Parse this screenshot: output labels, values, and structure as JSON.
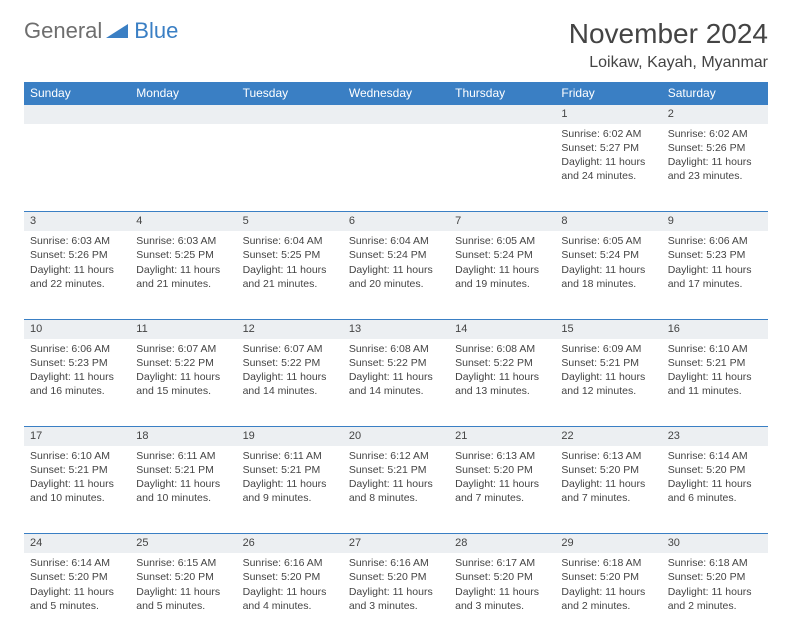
{
  "logo": {
    "general": "General",
    "blue": "Blue"
  },
  "title": "November 2024",
  "location": "Loikaw, Kayah, Myanmar",
  "colors": {
    "header_bg": "#3a7fc4",
    "header_text": "#ffffff",
    "daynum_bg": "#eceff2",
    "border": "#3a7fc4",
    "text": "#444444",
    "logo_gray": "#6e6e6e",
    "logo_blue": "#3a7fc4",
    "background": "#ffffff"
  },
  "typography": {
    "title_fontsize": 28,
    "location_fontsize": 16,
    "header_fontsize": 12,
    "daynum_fontsize": 11,
    "cell_fontsize": 10.5
  },
  "weekdays": [
    "Sunday",
    "Monday",
    "Tuesday",
    "Wednesday",
    "Thursday",
    "Friday",
    "Saturday"
  ],
  "weeks": [
    {
      "nums": [
        "",
        "",
        "",
        "",
        "",
        "1",
        "2"
      ],
      "cells": [
        [],
        [],
        [],
        [],
        [],
        [
          "Sunrise: 6:02 AM",
          "Sunset: 5:27 PM",
          "Daylight: 11 hours",
          "and 24 minutes."
        ],
        [
          "Sunrise: 6:02 AM",
          "Sunset: 5:26 PM",
          "Daylight: 11 hours",
          "and 23 minutes."
        ]
      ]
    },
    {
      "nums": [
        "3",
        "4",
        "5",
        "6",
        "7",
        "8",
        "9"
      ],
      "cells": [
        [
          "Sunrise: 6:03 AM",
          "Sunset: 5:26 PM",
          "Daylight: 11 hours",
          "and 22 minutes."
        ],
        [
          "Sunrise: 6:03 AM",
          "Sunset: 5:25 PM",
          "Daylight: 11 hours",
          "and 21 minutes."
        ],
        [
          "Sunrise: 6:04 AM",
          "Sunset: 5:25 PM",
          "Daylight: 11 hours",
          "and 21 minutes."
        ],
        [
          "Sunrise: 6:04 AM",
          "Sunset: 5:24 PM",
          "Daylight: 11 hours",
          "and 20 minutes."
        ],
        [
          "Sunrise: 6:05 AM",
          "Sunset: 5:24 PM",
          "Daylight: 11 hours",
          "and 19 minutes."
        ],
        [
          "Sunrise: 6:05 AM",
          "Sunset: 5:24 PM",
          "Daylight: 11 hours",
          "and 18 minutes."
        ],
        [
          "Sunrise: 6:06 AM",
          "Sunset: 5:23 PM",
          "Daylight: 11 hours",
          "and 17 minutes."
        ]
      ]
    },
    {
      "nums": [
        "10",
        "11",
        "12",
        "13",
        "14",
        "15",
        "16"
      ],
      "cells": [
        [
          "Sunrise: 6:06 AM",
          "Sunset: 5:23 PM",
          "Daylight: 11 hours",
          "and 16 minutes."
        ],
        [
          "Sunrise: 6:07 AM",
          "Sunset: 5:22 PM",
          "Daylight: 11 hours",
          "and 15 minutes."
        ],
        [
          "Sunrise: 6:07 AM",
          "Sunset: 5:22 PM",
          "Daylight: 11 hours",
          "and 14 minutes."
        ],
        [
          "Sunrise: 6:08 AM",
          "Sunset: 5:22 PM",
          "Daylight: 11 hours",
          "and 14 minutes."
        ],
        [
          "Sunrise: 6:08 AM",
          "Sunset: 5:22 PM",
          "Daylight: 11 hours",
          "and 13 minutes."
        ],
        [
          "Sunrise: 6:09 AM",
          "Sunset: 5:21 PM",
          "Daylight: 11 hours",
          "and 12 minutes."
        ],
        [
          "Sunrise: 6:10 AM",
          "Sunset: 5:21 PM",
          "Daylight: 11 hours",
          "and 11 minutes."
        ]
      ]
    },
    {
      "nums": [
        "17",
        "18",
        "19",
        "20",
        "21",
        "22",
        "23"
      ],
      "cells": [
        [
          "Sunrise: 6:10 AM",
          "Sunset: 5:21 PM",
          "Daylight: 11 hours",
          "and 10 minutes."
        ],
        [
          "Sunrise: 6:11 AM",
          "Sunset: 5:21 PM",
          "Daylight: 11 hours",
          "and 10 minutes."
        ],
        [
          "Sunrise: 6:11 AM",
          "Sunset: 5:21 PM",
          "Daylight: 11 hours",
          "and 9 minutes."
        ],
        [
          "Sunrise: 6:12 AM",
          "Sunset: 5:21 PM",
          "Daylight: 11 hours",
          "and 8 minutes."
        ],
        [
          "Sunrise: 6:13 AM",
          "Sunset: 5:20 PM",
          "Daylight: 11 hours",
          "and 7 minutes."
        ],
        [
          "Sunrise: 6:13 AM",
          "Sunset: 5:20 PM",
          "Daylight: 11 hours",
          "and 7 minutes."
        ],
        [
          "Sunrise: 6:14 AM",
          "Sunset: 5:20 PM",
          "Daylight: 11 hours",
          "and 6 minutes."
        ]
      ]
    },
    {
      "nums": [
        "24",
        "25",
        "26",
        "27",
        "28",
        "29",
        "30"
      ],
      "cells": [
        [
          "Sunrise: 6:14 AM",
          "Sunset: 5:20 PM",
          "Daylight: 11 hours",
          "and 5 minutes."
        ],
        [
          "Sunrise: 6:15 AM",
          "Sunset: 5:20 PM",
          "Daylight: 11 hours",
          "and 5 minutes."
        ],
        [
          "Sunrise: 6:16 AM",
          "Sunset: 5:20 PM",
          "Daylight: 11 hours",
          "and 4 minutes."
        ],
        [
          "Sunrise: 6:16 AM",
          "Sunset: 5:20 PM",
          "Daylight: 11 hours",
          "and 3 minutes."
        ],
        [
          "Sunrise: 6:17 AM",
          "Sunset: 5:20 PM",
          "Daylight: 11 hours",
          "and 3 minutes."
        ],
        [
          "Sunrise: 6:18 AM",
          "Sunset: 5:20 PM",
          "Daylight: 11 hours",
          "and 2 minutes."
        ],
        [
          "Sunrise: 6:18 AM",
          "Sunset: 5:20 PM",
          "Daylight: 11 hours",
          "and 2 minutes."
        ]
      ]
    }
  ]
}
